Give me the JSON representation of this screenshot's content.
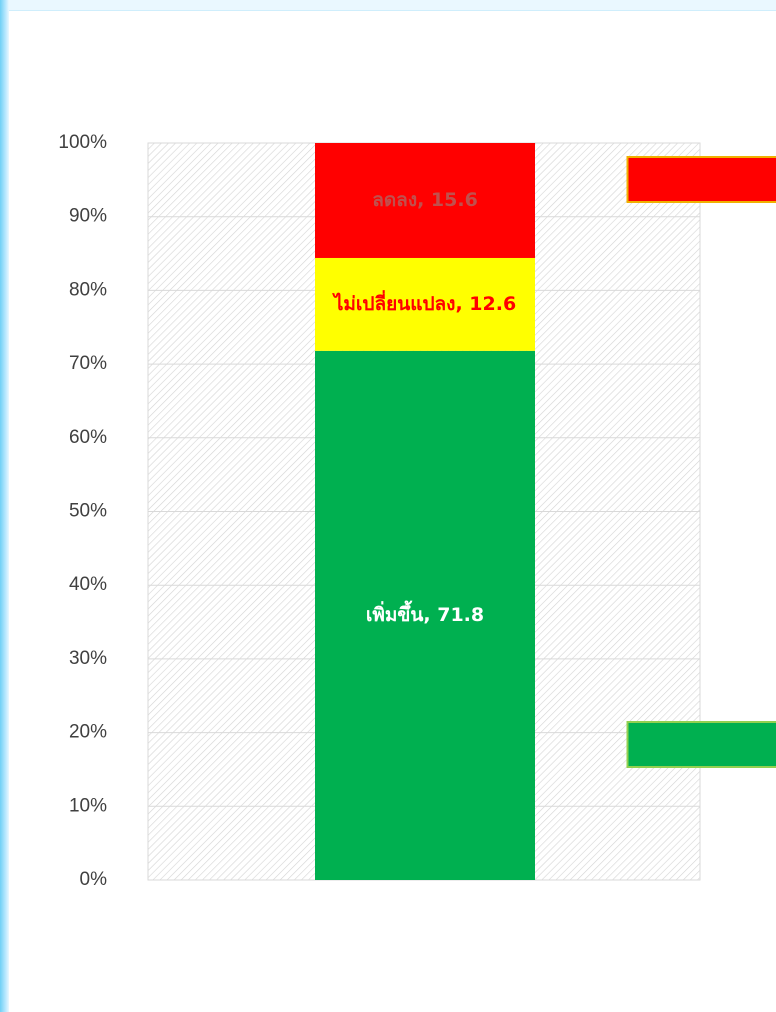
{
  "chart_data": {
    "type": "stacked_bar_100",
    "categories": [
      null
    ],
    "series": [
      {
        "color": "#00b050",
        "values": [
          71.8
        ],
        "value_labels": [
          "เพิ่มขึ้น, 71.8"
        ]
      },
      {
        "color": "#ffff00",
        "values": [
          12.6
        ],
        "value_labels": [
          "ไม่เปลี่ยนแปลง, 12.6"
        ]
      },
      {
        "color": "#ff0000",
        "values": [
          15.6
        ],
        "value_labels": [
          "ลดลง, 15.6"
        ]
      }
    ],
    "ylim": [
      0,
      100
    ],
    "yticks": [
      {
        "value": 0,
        "label": "0%"
      },
      {
        "value": 10,
        "label": "10%"
      },
      {
        "value": 20,
        "label": "20%"
      },
      {
        "value": 30,
        "label": "30%"
      },
      {
        "value": 40,
        "label": "40%"
      },
      {
        "value": 50,
        "label": "50%"
      },
      {
        "value": 60,
        "label": "60%"
      },
      {
        "value": 70,
        "label": "70%"
      },
      {
        "value": 80,
        "label": "80%"
      },
      {
        "value": 90,
        "label": "90%"
      },
      {
        "value": 100,
        "label": "100%"
      }
    ],
    "grid": true
  }
}
